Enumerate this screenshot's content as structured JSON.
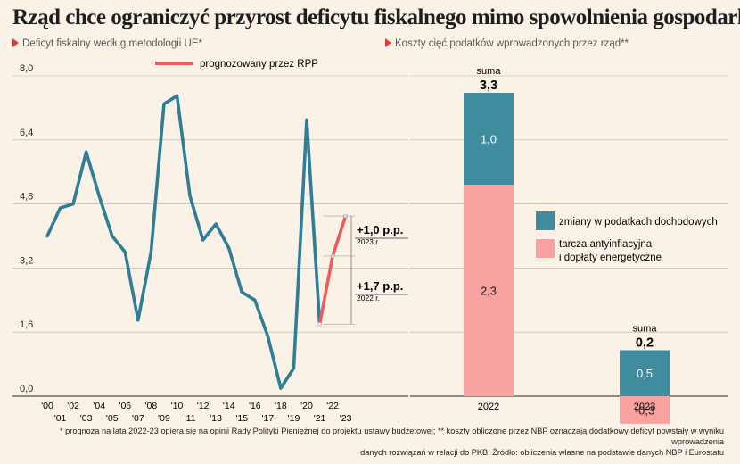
{
  "title": "Rząd chce ograniczyć przyrost deficytu fiskalnego mimo spowolnienia gospodarki",
  "left_subtitle": "Deficyt fiskalny według metodologii UE*",
  "right_subtitle": "Koszty cięć podatków wprowadzonych przez rząd**",
  "footnote_line1": "* prognoza na lata 2022-23 opiera się na opinii Rady Polityki Pieniężnej do projektu ustawy budżetowej; ** koszty obliczone przez NBP oznaczają dodatkowy deficyt powstały w wyniku wprowadzenia",
  "footnote_line2": "danych rozwiązań w relacji do PKB. Źródło: obliczenia własne na podstawie danych NBP i Eurostatu",
  "colors": {
    "line": "#2f7d96",
    "forecast": "#ef5b5b",
    "teal": "#3e8c9e",
    "pink": "#f7a1a1",
    "accent": "#e03a2f"
  },
  "chart_data": [
    {
      "type": "line",
      "y_ticks": [
        "8,0",
        "6,4",
        "4,8",
        "3,2",
        "1,6",
        "0,0"
      ],
      "ylim": [
        0,
        8.0
      ],
      "grid": true,
      "x_labels_top": [
        "'00",
        "'02",
        "'04",
        "'06",
        "'08",
        "'10",
        "'12",
        "'14",
        "'16",
        "'18",
        "'20",
        "'22"
      ],
      "x_labels_bottom": [
        "'01",
        "'03",
        "'05",
        "'07",
        "'09",
        "'11",
        "'13",
        "'15",
        "'17",
        "'19",
        "'21",
        "'23"
      ],
      "x": [
        2000,
        2001,
        2002,
        2003,
        2004,
        2005,
        2006,
        2007,
        2008,
        2009,
        2010,
        2011,
        2012,
        2013,
        2014,
        2015,
        2016,
        2017,
        2018,
        2019,
        2020,
        2021,
        2022,
        2023
      ],
      "series": [
        {
          "values": [
            4.0,
            4.7,
            4.8,
            6.1,
            5.0,
            4.0,
            3.6,
            1.9,
            3.6,
            7.3,
            7.5,
            5.0,
            3.9,
            4.3,
            3.7,
            2.6,
            2.4,
            1.5,
            0.2,
            0.7,
            6.9,
            1.8,
            null,
            null
          ]
        },
        {
          "name": "prognozowany przez RPP",
          "values": [
            null,
            null,
            null,
            null,
            null,
            null,
            null,
            null,
            null,
            null,
            null,
            null,
            null,
            null,
            null,
            null,
            null,
            null,
            null,
            null,
            null,
            1.8,
            3.5,
            4.5
          ]
        }
      ],
      "annotations": [
        {
          "text": "+1,0 p.p.",
          "sub": "2023 r."
        },
        {
          "text": "+1,7 p.p.",
          "sub": "2022 r."
        }
      ]
    },
    {
      "type": "bar",
      "stacked": true,
      "categories": [
        "2022",
        "2023"
      ],
      "series": [
        {
          "name": "tarcza antyinflacyjna i dopłaty energetyczne",
          "values": [
            2.3,
            -0.3
          ],
          "labels": [
            "2,3",
            "-0,3"
          ]
        },
        {
          "name": "zmiany w podatkach dochodowych",
          "values": [
            1.0,
            0.5
          ],
          "labels": [
            "1,0",
            "0,5"
          ]
        }
      ],
      "total_caption": "suma",
      "totals": [
        "3,3",
        "0,2"
      ],
      "legend_lines": {
        "teal": [
          "zmiany w podatkach dochodowych"
        ],
        "pink": [
          "tarcza antyinflacyjna",
          "i dopłaty energetyczne"
        ]
      }
    }
  ]
}
